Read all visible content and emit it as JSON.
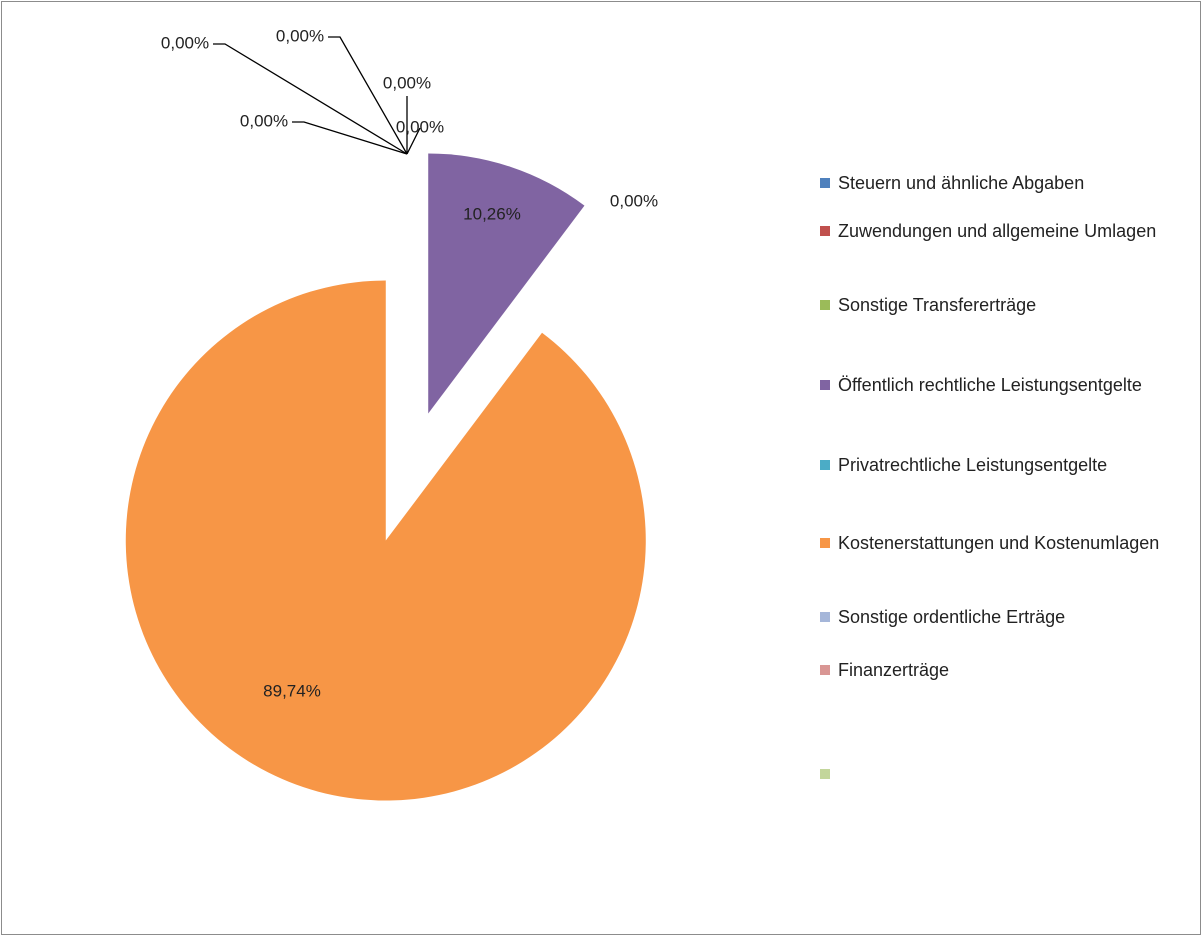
{
  "chart_data": {
    "type": "pie",
    "categories": [
      "Steuern und ähnliche Abgaben",
      "Zuwendungen und allgemeine Umlagen",
      "Sonstige Transfererträge",
      "Öffentlich rechtliche Leistungsentgelte",
      "Privatrechtliche Leistungsentgelte",
      "Kostenerstattungen und Kostenumlagen",
      "Sonstige ordentliche Erträge",
      "Finanzerträge",
      null
    ],
    "values": [
      0,
      0,
      0,
      10.26,
      0,
      89.74,
      0,
      0,
      0
    ],
    "value_labels": [
      "0,00%",
      "0,00%",
      "0,00%",
      "10,26%",
      "0,00%",
      "89,74%",
      "0,00%",
      "0,00%",
      null
    ],
    "colors": [
      "#4f81bd",
      "#c0504d",
      "#9bbb59",
      "#8064a2",
      "#4bacc6",
      "#f79646",
      "#a5b6d9",
      "#d99694",
      "#c3d69b"
    ],
    "legend": "right"
  }
}
